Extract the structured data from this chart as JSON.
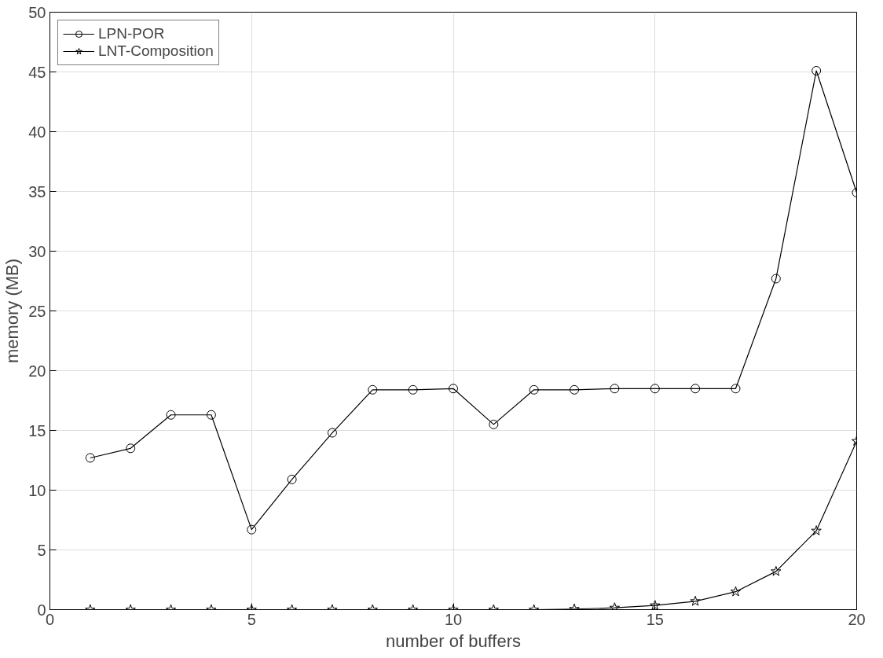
{
  "chart_data": {
    "type": "line",
    "xlabel": "number of buffers",
    "ylabel": "memory (MB)",
    "x": [
      1,
      2,
      3,
      4,
      5,
      6,
      7,
      8,
      9,
      10,
      11,
      12,
      13,
      14,
      15,
      16,
      17,
      18,
      19,
      20
    ],
    "series": [
      {
        "name": "LPN-POR",
        "color": "#000000",
        "marker": "circle",
        "values": [
          12.7,
          13.5,
          16.3,
          16.3,
          6.7,
          10.9,
          14.8,
          18.4,
          18.4,
          18.5,
          15.5,
          18.4,
          18.4,
          18.5,
          18.5,
          18.5,
          18.5,
          27.7,
          45.1,
          34.9
        ]
      },
      {
        "name": "LNT-Composition",
        "color": "#000000",
        "marker": "star",
        "values": [
          0,
          0,
          0,
          0,
          0,
          0,
          0,
          0,
          0,
          0,
          0,
          0,
          0.05,
          0.15,
          0.35,
          0.7,
          1.5,
          3.2,
          6.6,
          14.1
        ]
      }
    ],
    "xlim": [
      0,
      20
    ],
    "xticks": [
      0,
      5,
      10,
      15,
      20
    ],
    "ylim": [
      0,
      50
    ],
    "yticks": [
      0,
      5,
      10,
      15,
      20,
      25,
      30,
      35,
      40,
      45,
      50
    ],
    "grid": true,
    "legend": "top left",
    "line_style": "solid"
  }
}
